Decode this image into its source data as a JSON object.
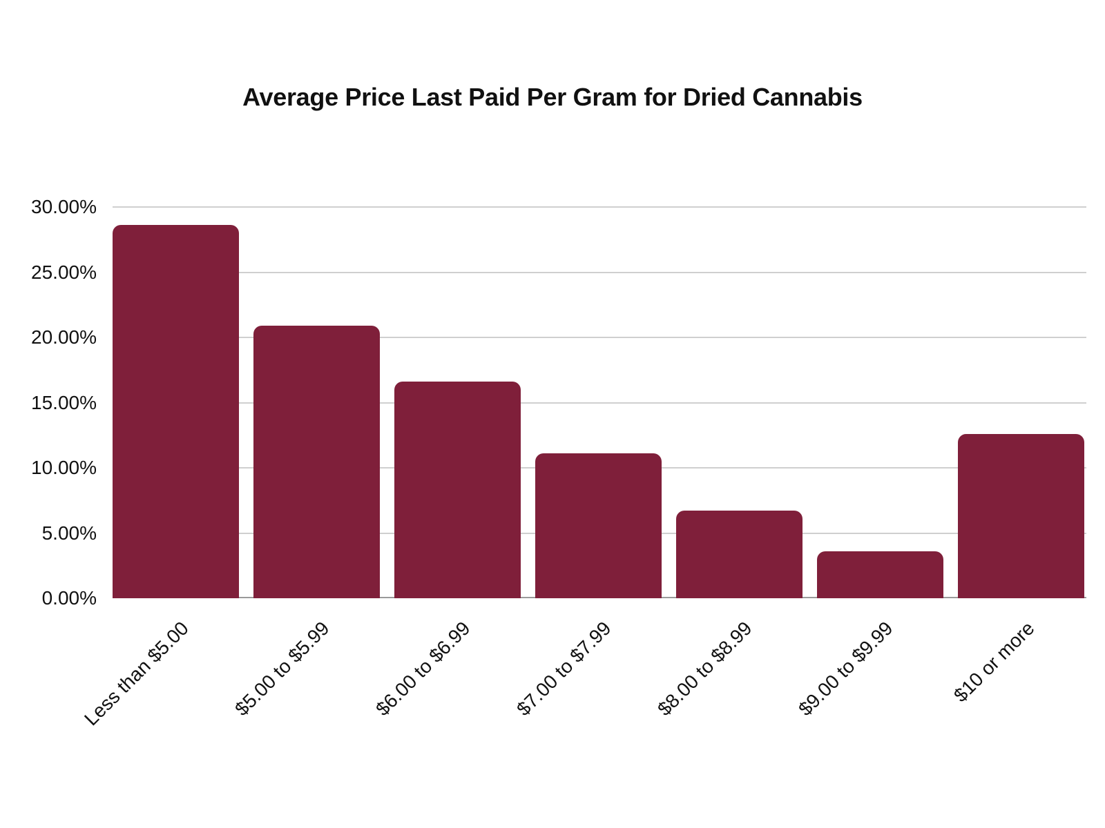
{
  "chart_data": {
    "type": "bar",
    "title": "Average Price Last Paid Per Gram for Dried Cannabis",
    "xlabel": "",
    "ylabel": "",
    "categories": [
      "Less than $5.00",
      "$5.00 to $5.99",
      "$6.00 to $6.99",
      "$7.00 to $7.99",
      "$8.00 to $8.99",
      "$9.00 to $9.99",
      "$10 or more"
    ],
    "values": [
      28.6,
      20.9,
      16.6,
      11.1,
      6.7,
      3.6,
      12.6
    ],
    "value_unit": "%",
    "ylim": [
      0,
      30
    ],
    "yticks": [
      "0.00%",
      "5.00%",
      "10.00%",
      "15.00%",
      "20.00%",
      "25.00%",
      "30.00%"
    ],
    "grid": true,
    "legend": null,
    "bar_color": "#7f1f3a"
  }
}
